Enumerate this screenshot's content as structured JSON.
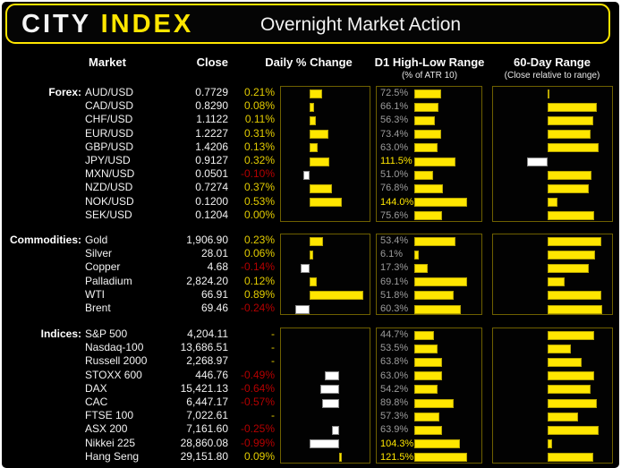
{
  "header": {
    "logo_city": "CITY",
    "logo_index": "INDEX",
    "title": "Overnight Market Action"
  },
  "columns": {
    "market": "Market",
    "close": "Close",
    "daily": "Daily % Change",
    "atr": "D1 High-Low Range",
    "atr_sub": "(% of ATR 10)",
    "range60": "60-Day Range",
    "range60_sub": "(Close relative to range)"
  },
  "colors": {
    "accent_yellow": "#ffe600",
    "negative_red": "#b50000",
    "atr_text_gray": "#9c9c9c",
    "box_border_olive": "#6e6000",
    "bar_positive": "#ffe600",
    "bar_negative": "#ffffff"
  },
  "chart_data": {
    "type": "bar",
    "title": "Overnight Market Action",
    "legend_position": "none",
    "grid": false,
    "daily_chart_note": "horizontal bars from zero baseline; positive yellow, negative white",
    "atr_chart_note": "bar width proportional to value, normalized to section max; labels >=100% shown yellow",
    "range60_axis": {
      "min": 0,
      "max": 100,
      "center": 50
    },
    "sections": [
      {
        "label": "Forex:",
        "daily_axis": {
          "min": -0.47,
          "max": 0.99
        },
        "atr_max": 144.0,
        "rows": [
          {
            "market": "AUD/USD",
            "close": "0.7729",
            "daily_text": "0.21%",
            "daily": 0.21,
            "atr_text": "72.5%",
            "atr": 72.5,
            "range60": 51
          },
          {
            "market": "CAD/USD",
            "close": "0.8290",
            "daily_text": "0.08%",
            "daily": 0.08,
            "atr_text": "66.1%",
            "atr": 66.1,
            "range60": 93
          },
          {
            "market": "CHF/USD",
            "close": "1.1122",
            "daily_text": "0.11%",
            "daily": 0.11,
            "atr_text": "56.3%",
            "atr": 56.3,
            "range60": 90
          },
          {
            "market": "EUR/USD",
            "close": "1.2227",
            "daily_text": "0.31%",
            "daily": 0.31,
            "atr_text": "73.4%",
            "atr": 73.4,
            "range60": 88
          },
          {
            "market": "GBP/USD",
            "close": "1.4206",
            "daily_text": "0.13%",
            "daily": 0.13,
            "atr_text": "63.0%",
            "atr": 63.0,
            "range60": 95
          },
          {
            "market": "JPY/USD",
            "close": "0.9127",
            "daily_text": "0.32%",
            "daily": 0.32,
            "atr_text": "111.5%",
            "atr": 111.5,
            "range60": 32
          },
          {
            "market": "MXN/USD",
            "close": "0.0501",
            "daily_text": "-0.10%",
            "daily": -0.1,
            "atr_text": "51.0%",
            "atr": 51.0,
            "range60": 89
          },
          {
            "market": "NZD/USD",
            "close": "0.7274",
            "daily_text": "0.37%",
            "daily": 0.37,
            "atr_text": "76.8%",
            "atr": 76.8,
            "range60": 86
          },
          {
            "market": "NOK/USD",
            "close": "0.1200",
            "daily_text": "0.53%",
            "daily": 0.53,
            "atr_text": "144.0%",
            "atr": 144.0,
            "range60": 59
          },
          {
            "market": "SEK/USD",
            "close": "0.1204",
            "daily_text": "0.00%",
            "daily": 0.0,
            "atr_text": "75.6%",
            "atr": 75.6,
            "range60": 91
          }
        ]
      },
      {
        "label": "Commodities:",
        "daily_axis": {
          "min": -0.47,
          "max": 0.99
        },
        "atr_max": 69.1,
        "rows": [
          {
            "market": "Gold",
            "close": "1,906.90",
            "daily_text": "0.23%",
            "daily": 0.23,
            "atr_text": "53.4%",
            "atr": 53.4,
            "range60": 97
          },
          {
            "market": "Silver",
            "close": "28.01",
            "daily_text": "0.06%",
            "daily": 0.06,
            "atr_text": "6.1%",
            "atr": 6.1,
            "range60": 92
          },
          {
            "market": "Copper",
            "close": "4.68",
            "daily_text": "-0.14%",
            "daily": -0.14,
            "atr_text": "17.3%",
            "atr": 17.3,
            "range60": 86
          },
          {
            "market": "Palladium",
            "close": "2,824.20",
            "daily_text": "0.12%",
            "daily": 0.12,
            "atr_text": "69.1%",
            "atr": 69.1,
            "range60": 65
          },
          {
            "market": "WTI",
            "close": "66.91",
            "daily_text": "0.89%",
            "daily": 0.89,
            "atr_text": "51.8%",
            "atr": 51.8,
            "range60": 97
          },
          {
            "market": "Brent",
            "close": "69.46",
            "daily_text": "-0.24%",
            "daily": -0.24,
            "atr_text": "60.3%",
            "atr": 60.3,
            "range60": 98
          }
        ]
      },
      {
        "label": "Indices:",
        "daily_axis": {
          "min": -1.97,
          "max": 1.03
        },
        "atr_max": 121.5,
        "rows": [
          {
            "market": "S&P 500",
            "close": "4,204.11",
            "daily_text": "-",
            "daily": null,
            "atr_text": "44.7%",
            "atr": 44.7,
            "range60": 91
          },
          {
            "market": "Nasdaq-100",
            "close": "13,686.51",
            "daily_text": "-",
            "daily": null,
            "atr_text": "53.5%",
            "atr": 53.5,
            "range60": 71
          },
          {
            "market": "Russell 2000",
            "close": "2,268.97",
            "daily_text": "-",
            "daily": null,
            "atr_text": "63.8%",
            "atr": 63.8,
            "range60": 80
          },
          {
            "market": "STOXX 600",
            "close": "446.76",
            "daily_text": "-0.49%",
            "daily": -0.49,
            "atr_text": "63.0%",
            "atr": 63.0,
            "range60": 91
          },
          {
            "market": "DAX",
            "close": "15,421.13",
            "daily_text": "-0.64%",
            "daily": -0.64,
            "atr_text": "54.2%",
            "atr": 54.2,
            "range60": 88
          },
          {
            "market": "CAC",
            "close": "6,447.17",
            "daily_text": "-0.57%",
            "daily": -0.57,
            "atr_text": "89.8%",
            "atr": 89.8,
            "range60": 93
          },
          {
            "market": "FTSE 100",
            "close": "7,022.61",
            "daily_text": "-",
            "daily": null,
            "atr_text": "57.3%",
            "atr": 57.3,
            "range60": 77
          },
          {
            "market": "ASX 200",
            "close": "7,161.60",
            "daily_text": "-0.25%",
            "daily": -0.25,
            "atr_text": "63.9%",
            "atr": 63.9,
            "range60": 95
          },
          {
            "market": "Nikkei 225",
            "close": "28,860.08",
            "daily_text": "-0.99%",
            "daily": -0.99,
            "atr_text": "104.3%",
            "atr": 104.3,
            "range60": 54
          },
          {
            "market": "Hang Seng",
            "close": "29,151.80",
            "daily_text": "0.09%",
            "daily": 0.09,
            "atr_text": "121.5%",
            "atr": 121.5,
            "range60": 90
          }
        ]
      }
    ]
  }
}
